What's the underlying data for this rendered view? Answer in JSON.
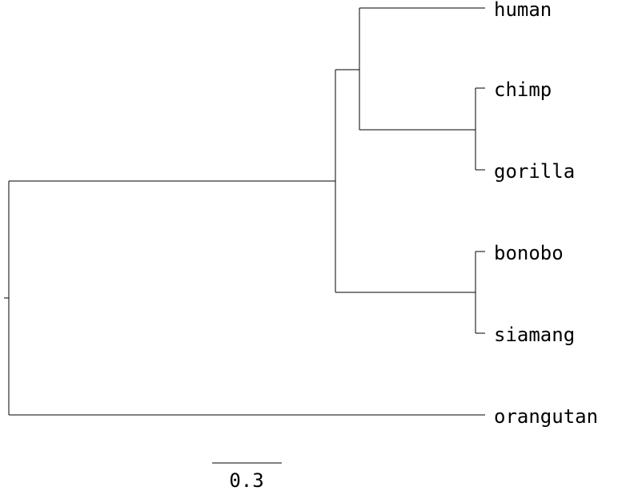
{
  "tree": {
    "line_color": "#000000",
    "taxa": {
      "human": "human",
      "chimp": "chimp",
      "gorilla": "gorilla",
      "bonobo": "bonobo",
      "siamang": "siamang",
      "orangutan": "orangutan"
    }
  },
  "scale_bar": {
    "label": "0.3"
  }
}
